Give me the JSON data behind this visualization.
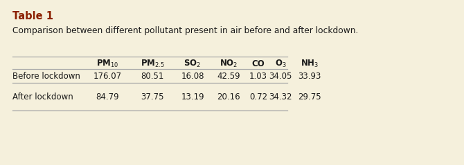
{
  "title": "Table 1",
  "subtitle": "Comparison between different pollutant present in air before and after lockdown.",
  "title_color": "#8B2000",
  "text_color": "#1a1a1a",
  "bg_color": "#F5F0DC",
  "columns_plain": [
    "",
    "PM10",
    "PM2.5",
    "SO2",
    "NO2",
    "CO",
    "O3",
    "NH3"
  ],
  "columns_latex": [
    "",
    "PM$_{10}$",
    "PM$_{2.5}$",
    "SO$_{2}$",
    "NO$_{2}$",
    "CO",
    "O$_{3}$",
    "NH$_{3}$"
  ],
  "rows": [
    [
      "Before lockdown",
      "176.07",
      "80.51",
      "16.08",
      "42.59",
      "1.03",
      "34.05",
      "33.93"
    ],
    [
      "After lockdown",
      "84.79",
      "37.75",
      "13.19",
      "20.16",
      "0.72",
      "34.32",
      "29.75"
    ]
  ],
  "font_size": 8.5,
  "title_font_size": 10.5,
  "subtitle_font_size": 8.8,
  "table_line_color": "#aaaaaa",
  "table_line_lw": 0.9
}
